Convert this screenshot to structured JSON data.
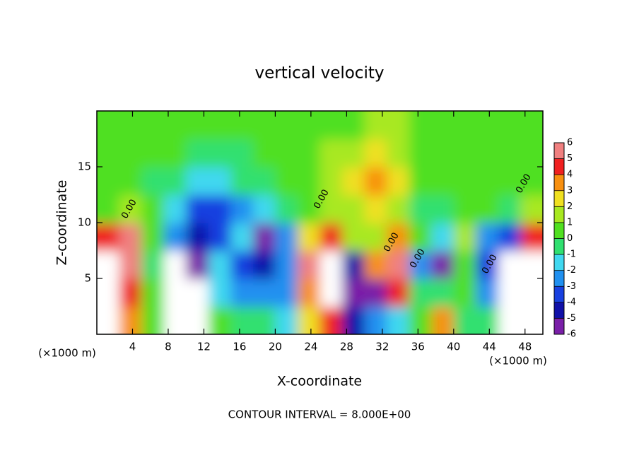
{
  "chart_data": {
    "type": "contour",
    "title": "vertical velocity",
    "x_label": "X-coordinate",
    "y_label": "Z-coordinate",
    "x_unit": "(×1000 m)",
    "footer": "CONTOUR INTERVAL = 8.000E+00",
    "xlim": [
      0,
      50
    ],
    "ylim": [
      0,
      20
    ],
    "xticks": [
      4,
      8,
      12,
      16,
      20,
      24,
      28,
      32,
      36,
      40,
      44,
      48
    ],
    "yticks": [
      5,
      10,
      15
    ],
    "x": [
      1.25,
      3.75,
      6.25,
      8.75,
      11.25,
      13.75,
      16.25,
      18.75,
      21.25,
      23.75,
      26.25,
      28.75,
      31.25,
      33.75,
      36.25,
      38.75,
      41.25,
      43.75,
      46.25,
      48.75
    ],
    "y": [
      1.25,
      3.75,
      6.25,
      8.75,
      11.25,
      13.75,
      16.25,
      18.75
    ],
    "z": [
      [
        7,
        3,
        0,
        -7,
        -7,
        0,
        -1,
        -1,
        -2,
        2,
        4,
        -5,
        -3,
        -2,
        0,
        3,
        -1,
        -1,
        -7,
        7
      ],
      [
        7,
        4,
        0,
        -7,
        -7,
        -2,
        -3,
        -3,
        -3,
        3,
        7,
        -6,
        -6,
        4,
        -1,
        -1,
        0,
        -3,
        -7,
        7
      ],
      [
        7,
        5,
        -1,
        -7,
        -6,
        -2,
        -4,
        -5,
        -3,
        5,
        7,
        -5,
        3,
        5,
        -3,
        -6,
        0,
        -4,
        -7,
        7
      ],
      [
        4,
        5,
        0,
        -3,
        -5,
        -4,
        -2,
        -6,
        -3,
        2,
        4,
        1,
        1,
        3,
        0,
        -2,
        1,
        -3,
        -4,
        4
      ],
      [
        0,
        1,
        0,
        -2,
        -4,
        -4,
        -3,
        -2,
        -1,
        0,
        1,
        1,
        2,
        1,
        -1,
        -1,
        0,
        0,
        -1,
        1
      ],
      [
        0,
        0,
        -0.5,
        -1,
        -2,
        -2,
        -1,
        -1,
        0,
        0,
        1,
        2,
        3,
        2,
        0,
        0,
        0,
        0,
        0,
        0
      ],
      [
        0,
        0,
        0,
        0,
        -0.5,
        -1,
        -0.5,
        0,
        0,
        0,
        1,
        1,
        2,
        1,
        0,
        0,
        0,
        0,
        0,
        0
      ],
      [
        0,
        0,
        0,
        0,
        0,
        0,
        0,
        0,
        0,
        0,
        0,
        0.5,
        1,
        1,
        0,
        0,
        0,
        0,
        0,
        0
      ]
    ],
    "clim": [
      -6,
      6
    ],
    "cticks": [
      -6,
      -5,
      -4,
      -3,
      -2,
      -1,
      0,
      1,
      2,
      3,
      4,
      5,
      6
    ],
    "colors": [
      "#7a1fa8",
      "#1010a8",
      "#1840e0",
      "#2090f0",
      "#40d8f0",
      "#30e070",
      "#50e020",
      "#a8e820",
      "#f0e020",
      "#f89010",
      "#f02020",
      "#f08080"
    ],
    "contour_label": {
      "value": 0,
      "label": "0.00"
    }
  }
}
